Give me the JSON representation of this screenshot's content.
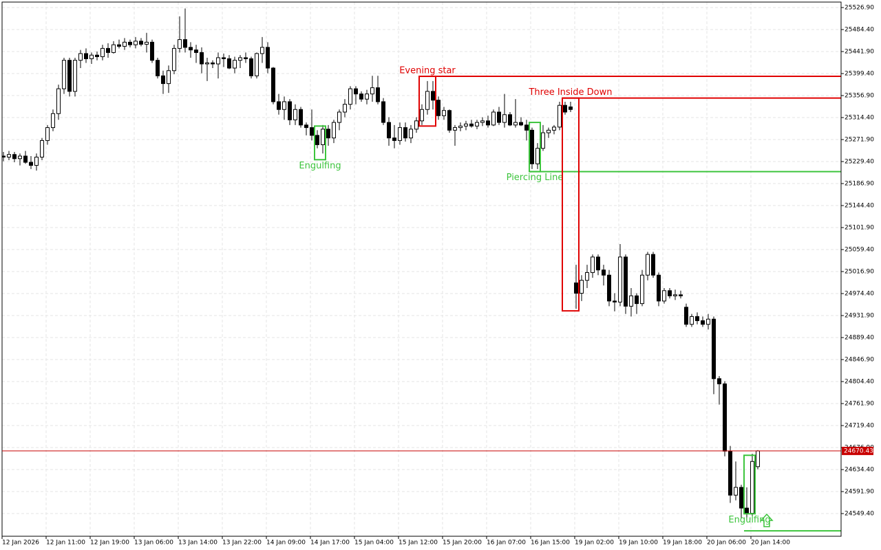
{
  "chart_data": {
    "type": "candlestick",
    "categories": [
      "12 Jan 2026",
      null,
      null,
      null,
      null,
      null,
      null,
      null,
      "12 Jan 11:00",
      null,
      null,
      null,
      null,
      null,
      null,
      null,
      "12 Jan 19:00",
      null,
      null,
      null,
      null,
      null,
      null,
      null,
      "13 Jan 06:00",
      null,
      null,
      null,
      null,
      null,
      null,
      null,
      "13 Jan 14:00",
      null,
      null,
      null,
      null,
      null,
      null,
      null,
      "13 Jan 22:00",
      null,
      null,
      null,
      null,
      null,
      null,
      null,
      "14 Jan 09:00",
      null,
      null,
      null,
      null,
      null,
      null,
      null,
      "14 Jan 17:00",
      null,
      null,
      null,
      null,
      null,
      null,
      null,
      "15 Jan 04:00",
      null,
      null,
      null,
      null,
      null,
      null,
      null,
      "15 Jan 12:00",
      null,
      null,
      null,
      null,
      null,
      null,
      null,
      "15 Jan 20:00",
      null,
      null,
      null,
      null,
      null,
      null,
      null,
      "16 Jan 07:00",
      null,
      null,
      null,
      null,
      null,
      null,
      null,
      "16 Jan 15:00",
      null,
      null,
      null,
      null,
      null,
      null,
      null,
      "19 Jan 02:00",
      null,
      null,
      null,
      null,
      null,
      null,
      null,
      "19 Jan 10:00",
      null,
      null,
      null,
      null,
      null,
      null,
      null,
      "19 Jan 18:00",
      null,
      null,
      null,
      null,
      null,
      null,
      null,
      "20 Jan 06:00",
      null,
      null,
      null,
      null,
      null,
      null,
      null,
      "20 Jan 14:00",
      null
    ],
    "open": [
      25240,
      25238,
      25243,
      25235,
      25240,
      25228,
      25222,
      25238,
      25270,
      25295,
      25322,
      25370,
      25425,
      25365,
      25425,
      25438,
      25428,
      25435,
      25432,
      25448,
      25440,
      25455,
      25452,
      25460,
      25455,
      25462,
      25456,
      25460,
      25425,
      25395,
      25380,
      25405,
      25448,
      25465,
      25450,
      25445,
      25440,
      25418,
      25420,
      25418,
      25430,
      25428,
      25410,
      25425,
      25430,
      25428,
      25395,
      25438,
      25450,
      25410,
      25345,
      25330,
      25345,
      25310,
      25330,
      25300,
      25295,
      25280,
      25262,
      25292,
      25275,
      25305,
      25325,
      25340,
      25370,
      25360,
      25350,
      25360,
      25372,
      25345,
      25305,
      25275,
      25270,
      25295,
      25275,
      25292,
      25308,
      25330,
      25365,
      25348,
      25318,
      25328,
      25290,
      25295,
      25298,
      25302,
      25298,
      25305,
      25308,
      25300,
      25325,
      25305,
      25320,
      25300,
      25305,
      25300,
      25290,
      25225,
      25255,
      25285,
      25290,
      25296,
      25338,
      25335,
      24995,
      24975,
      25000,
      25015,
      25045,
      25020,
      25010,
      24960,
      24958,
      25045,
      24950,
      24970,
      24955,
      25010,
      25050,
      25010,
      24960,
      24980,
      24970,
      24972,
      24948,
      24915,
      24930,
      24922,
      24915,
      24925,
      24810,
      24800,
      24670,
      24585,
      24600,
      24560,
      24550,
      24640
    ],
    "high": [
      25248,
      25250,
      25248,
      25245,
      25250,
      25240,
      25245,
      25275,
      25300,
      25330,
      25378,
      25430,
      25430,
      25430,
      25445,
      25448,
      25440,
      25442,
      25455,
      25458,
      25462,
      25465,
      25468,
      25465,
      25470,
      25468,
      25478,
      25465,
      25430,
      25405,
      25415,
      25455,
      25510,
      25525,
      25460,
      25455,
      25450,
      25430,
      25425,
      25440,
      25438,
      25435,
      25432,
      25435,
      25440,
      25432,
      25440,
      25470,
      25460,
      25412,
      25360,
      25355,
      25350,
      25340,
      25335,
      25305,
      25330,
      25290,
      25300,
      25300,
      25310,
      25330,
      25350,
      25375,
      25375,
      25365,
      25368,
      25395,
      25395,
      25352,
      25315,
      25300,
      25305,
      25305,
      25300,
      25315,
      25340,
      25385,
      25385,
      25355,
      25335,
      25330,
      25300,
      25305,
      25308,
      25310,
      25310,
      25315,
      25318,
      25330,
      25335,
      25360,
      25325,
      25350,
      25315,
      25310,
      25295,
      25265,
      25300,
      25295,
      25300,
      25345,
      25345,
      25345,
      25030,
      25010,
      25030,
      25050,
      25050,
      25030,
      25020,
      24975,
      25070,
      25050,
      24985,
      24975,
      25020,
      25055,
      25055,
      25015,
      24985,
      24985,
      24982,
      24980,
      24955,
      24935,
      24938,
      24930,
      24935,
      24930,
      24815,
      24805,
      24680,
      24650,
      24605,
      24600,
      24665,
      24672
    ],
    "low": [
      25230,
      25232,
      25228,
      25222,
      25225,
      25215,
      25212,
      25232,
      25262,
      25288,
      25310,
      25360,
      25355,
      25355,
      25410,
      25420,
      25418,
      25425,
      25425,
      25430,
      25438,
      25448,
      25445,
      25450,
      25448,
      25452,
      25440,
      25420,
      25390,
      25360,
      25362,
      25398,
      25440,
      25440,
      25430,
      25420,
      25400,
      25385,
      25410,
      25390,
      25412,
      25408,
      25400,
      25410,
      25420,
      25390,
      25390,
      25420,
      25400,
      25340,
      25320,
      25310,
      25300,
      25300,
      25295,
      25280,
      25270,
      25255,
      25245,
      25260,
      25265,
      25290,
      25315,
      25330,
      25340,
      25345,
      25340,
      25345,
      25340,
      25300,
      25260,
      25255,
      25262,
      25268,
      25265,
      25285,
      25300,
      25320,
      25330,
      25310,
      25310,
      25285,
      25260,
      25288,
      25290,
      25295,
      25292,
      25298,
      25295,
      25298,
      25300,
      25295,
      25298,
      25295,
      25298,
      25270,
      25215,
      25215,
      25250,
      25275,
      25282,
      25290,
      25320,
      25325,
      24945,
      24960,
      24985,
      25005,
      25010,
      24990,
      24950,
      24940,
      24950,
      24935,
      24930,
      24935,
      24950,
      25000,
      25005,
      24950,
      24955,
      24965,
      24962,
      24965,
      24910,
      24910,
      24915,
      24910,
      24905,
      24780,
      24760,
      24660,
      24570,
      24575,
      24540,
      24535,
      24545,
      24635
    ],
    "close": [
      25238,
      25243,
      25235,
      25240,
      25228,
      25222,
      25238,
      25270,
      25295,
      25322,
      25370,
      25425,
      25365,
      25425,
      25438,
      25428,
      25435,
      25432,
      25448,
      25440,
      25455,
      25452,
      25460,
      25455,
      25462,
      25456,
      25460,
      25425,
      25395,
      25380,
      25405,
      25448,
      25465,
      25450,
      25445,
      25440,
      25418,
      25420,
      25418,
      25430,
      25428,
      25410,
      25425,
      25430,
      25428,
      25395,
      25438,
      25450,
      25410,
      25345,
      25330,
      25345,
      25310,
      25330,
      25300,
      25295,
      25280,
      25262,
      25292,
      25275,
      25305,
      25325,
      25340,
      25370,
      25360,
      25350,
      25360,
      25372,
      25345,
      25305,
      25275,
      25270,
      25295,
      25275,
      25292,
      25308,
      25330,
      25365,
      25348,
      25318,
      25328,
      25290,
      25295,
      25298,
      25302,
      25298,
      25305,
      25308,
      25300,
      25325,
      25305,
      25320,
      25300,
      25305,
      25300,
      25290,
      25225,
      25255,
      25285,
      25290,
      25296,
      25338,
      25325,
      25330,
      24975,
      25000,
      25015,
      25045,
      25020,
      25010,
      24960,
      24958,
      25045,
      24950,
      24970,
      24955,
      25010,
      25050,
      25010,
      24960,
      24980,
      24970,
      24972,
      24970,
      24915,
      24930,
      24922,
      24915,
      24925,
      24810,
      24800,
      24670,
      24585,
      24600,
      24560,
      24550,
      24650,
      24670.43
    ],
    "ylim": [
      24505.6,
      25537.5
    ],
    "yticks": [
      {
        "value": 24549.4,
        "label": "24549.40"
      },
      {
        "value": 24591.9,
        "label": "24591.90"
      },
      {
        "value": 24634.4,
        "label": "24634.40"
      },
      {
        "value": 24676.9,
        "label": "24676.90"
      },
      {
        "value": 24719.4,
        "label": "24719.40"
      },
      {
        "value": 24761.9,
        "label": "24761.90"
      },
      {
        "value": 24804.4,
        "label": "24804.40"
      },
      {
        "value": 24846.9,
        "label": "24846.90"
      },
      {
        "value": 24889.4,
        "label": "24889.40"
      },
      {
        "value": 24931.9,
        "label": "24931.90"
      },
      {
        "value": 24974.4,
        "label": "24974.40"
      },
      {
        "value": 25016.9,
        "label": "25016.90"
      },
      {
        "value": 25059.4,
        "label": "25059.40"
      },
      {
        "value": 25101.9,
        "label": "25101.90"
      },
      {
        "value": 25144.4,
        "label": "25144.40"
      },
      {
        "value": 25186.9,
        "label": "25186.90"
      },
      {
        "value": 25229.4,
        "label": "25229.40"
      },
      {
        "value": 25271.9,
        "label": "25271.90"
      },
      {
        "value": 25314.4,
        "label": "25314.40"
      },
      {
        "value": 25356.9,
        "label": "25356.90"
      },
      {
        "value": 25399.4,
        "label": "25399.40"
      },
      {
        "value": 25441.9,
        "label": "25441.90"
      },
      {
        "value": 25484.4,
        "label": "25484.40"
      },
      {
        "value": 25526.9,
        "label": "25526.90"
      }
    ],
    "grid": true,
    "current_price": 24670.43,
    "current_color": "#c80000",
    "patterns": [
      {
        "label": "Engulfing",
        "color": "#3cc43c",
        "start": 57,
        "end": 58,
        "high": 25298,
        "low": 25233,
        "level": null
      },
      {
        "label": "Evening star",
        "color": "#e00000",
        "start": 76,
        "end": 78,
        "high": 25394,
        "low": 25298,
        "level": 25394
      },
      {
        "label": "Piercing Line",
        "color": "#3cc43c",
        "start": 96,
        "end": 97,
        "high": 25305,
        "low": 25210,
        "level": 25210
      },
      {
        "label": "Three Inside Down",
        "color": "#e00000",
        "start": 102,
        "end": 104,
        "high": 25352,
        "low": 24941,
        "level": 25352
      },
      {
        "label": "Engulfing",
        "color": "#3cc43c",
        "start": 135,
        "end": 136,
        "high": 24662,
        "low": 24549,
        "level": 24516
      }
    ]
  }
}
